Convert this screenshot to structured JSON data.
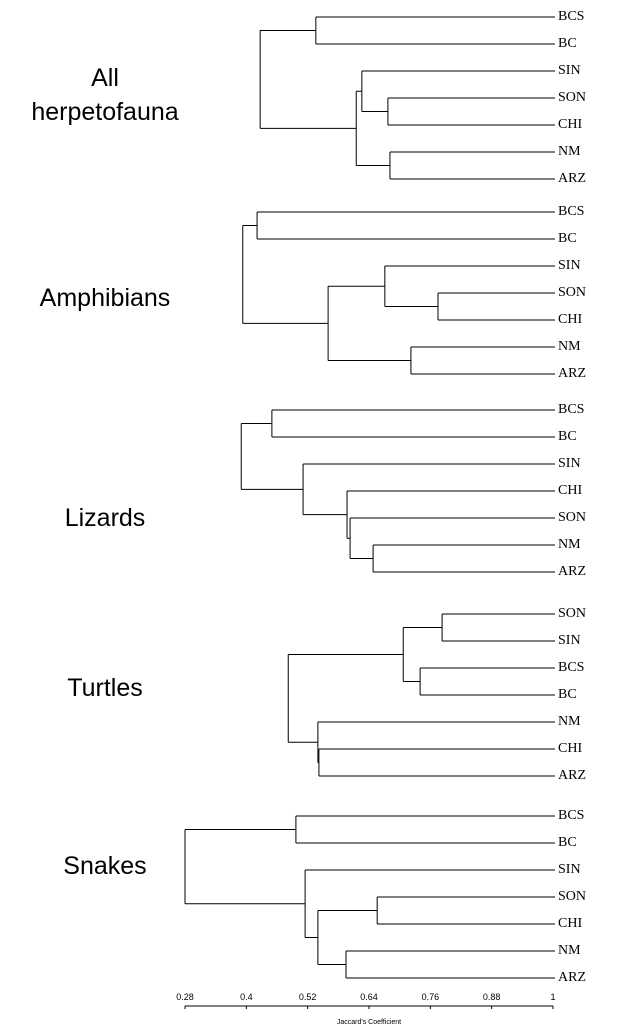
{
  "panels": [
    {
      "title": [
        "All",
        "herpetofauna"
      ],
      "tree": {
        "height": 0.427,
        "children": [
          {
            "height": 0.536,
            "children": [
              "BCS",
              "BC"
            ]
          },
          {
            "height": 0.615,
            "children": [
              {
                "height": 0.626,
                "children": [
                  "SIN",
                  {
                    "height": 0.677,
                    "children": [
                      "SON",
                      "CHI"
                    ]
                  }
                ]
              },
              {
                "height": 0.681,
                "children": [
                  "NM",
                  "ARZ"
                ]
              }
            ]
          }
        ]
      }
    },
    {
      "title": [
        "Amphibians"
      ],
      "tree": {
        "height": 0.393,
        "children": [
          {
            "height": 0.421,
            "children": [
              "BCS",
              "BC"
            ]
          },
          {
            "height": 0.56,
            "children": [
              {
                "height": 0.671,
                "children": [
                  "SIN",
                  {
                    "height": 0.775,
                    "children": [
                      "SON",
                      "CHI"
                    ]
                  }
                ]
              },
              {
                "height": 0.722,
                "children": [
                  "NM",
                  "ARZ"
                ]
              }
            ]
          }
        ]
      }
    },
    {
      "title": [
        "Lizards"
      ],
      "tree": {
        "height": 0.39,
        "children": [
          {
            "height": 0.45,
            "children": [
              "BCS",
              "BC"
            ]
          },
          {
            "height": 0.511,
            "children": [
              "SIN",
              {
                "height": 0.597,
                "children": [
                  "CHI",
                  {
                    "height": 0.603,
                    "children": [
                      "SON",
                      {
                        "height": 0.648,
                        "children": [
                          "NM",
                          "ARZ"
                        ]
                      }
                    ]
                  }
                ]
              }
            ]
          }
        ]
      }
    },
    {
      "title": [
        "Turtles"
      ],
      "tree": {
        "height": 0.482,
        "children": [
          {
            "height": 0.707,
            "children": [
              {
                "height": 0.783,
                "children": [
                  "SON",
                  "SIN"
                ]
              },
              {
                "height": 0.74,
                "children": [
                  "BCS",
                  "BC"
                ]
              }
            ]
          },
          {
            "height": 0.54,
            "children": [
              "NM",
              {
                "height": 0.542,
                "children": [
                  "CHI",
                  "ARZ"
                ]
              }
            ]
          }
        ]
      }
    },
    {
      "title": [
        "Snakes"
      ],
      "tree": {
        "height": 0.28,
        "children": [
          {
            "height": 0.497,
            "children": [
              "BCS",
              "BC"
            ]
          },
          {
            "height": 0.515,
            "children": [
              "SIN",
              {
                "height": 0.54,
                "children": [
                  {
                    "height": 0.656,
                    "children": [
                      "SON",
                      "CHI"
                    ]
                  },
                  {
                    "height": 0.595,
                    "children": [
                      "NM",
                      "ARZ"
                    ]
                  }
                ]
              }
            ]
          }
        ]
      }
    }
  ],
  "axis": {
    "label": "Jaccard's Coefficient",
    "lim": [
      0.28,
      1
    ],
    "ticks": [
      0.28,
      0.4,
      0.52,
      0.64,
      0.76,
      0.88,
      1
    ]
  }
}
